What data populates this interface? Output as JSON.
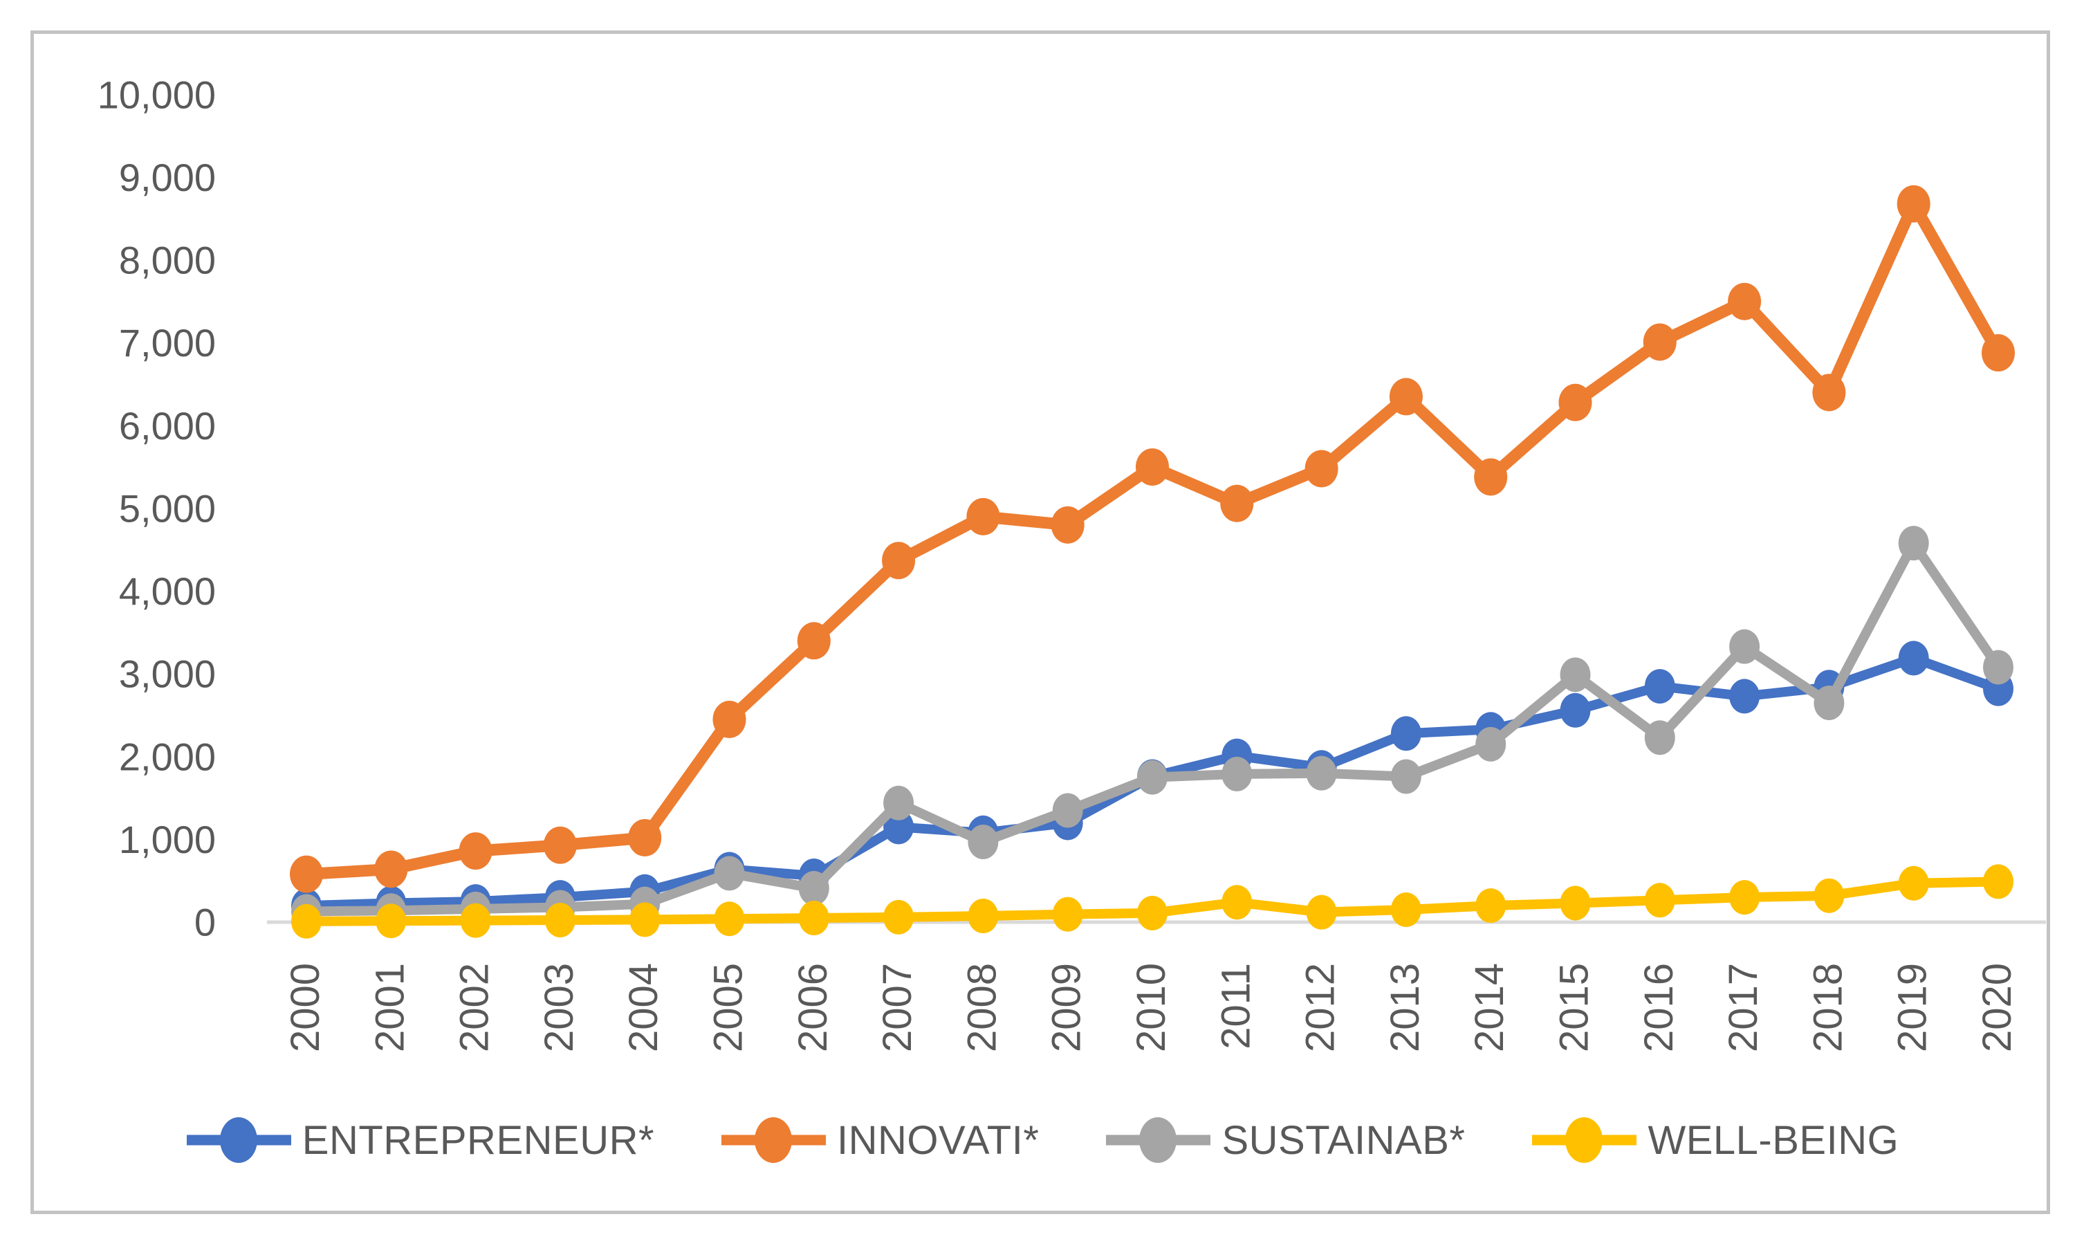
{
  "window": {
    "background_color": "#ffffff",
    "frame_border_color": "#c3c3c3"
  },
  "chart_data": {
    "type": "line",
    "title": "",
    "xlabel": "",
    "ylabel": "",
    "categories": [
      "2000",
      "2001",
      "2002",
      "2003",
      "2004",
      "2005",
      "2006",
      "2007",
      "2008",
      "2009",
      "2010",
      "2011",
      "2012",
      "2013",
      "2014",
      "2015",
      "2016",
      "2017",
      "2018",
      "2019",
      "2020"
    ],
    "series": [
      {
        "name": "ENTREPRENEUR*",
        "color": "#4472C4",
        "values": [
          200,
          230,
          250,
          300,
          370,
          640,
          560,
          1150,
          1080,
          1200,
          1760,
          2010,
          1870,
          2280,
          2330,
          2560,
          2850,
          2730,
          2840,
          3190,
          2820
        ]
      },
      {
        "name": "INNOVATI*",
        "color": "#ED7D31",
        "values": [
          580,
          640,
          860,
          930,
          1020,
          2450,
          3400,
          4370,
          4900,
          4800,
          5500,
          5060,
          5480,
          6350,
          5380,
          6280,
          7010,
          7500,
          6400,
          8680,
          6880
        ]
      },
      {
        "name": "SUSTAINAB*",
        "color": "#A5A5A5",
        "values": [
          130,
          140,
          160,
          180,
          220,
          590,
          410,
          1440,
          970,
          1350,
          1750,
          1790,
          1800,
          1760,
          2150,
          2990,
          2230,
          3330,
          2650,
          4580,
          3080
        ]
      },
      {
        "name": "WELL-BEING",
        "color": "#FFC000",
        "values": [
          10,
          15,
          20,
          25,
          30,
          40,
          50,
          60,
          75,
          95,
          110,
          240,
          120,
          150,
          200,
          230,
          265,
          300,
          320,
          470,
          490
        ]
      }
    ],
    "ylim": [
      0,
      10000
    ],
    "y_ticks": [
      "0",
      "1,000",
      "2,000",
      "3,000",
      "4,000",
      "5,000",
      "6,000",
      "7,000",
      "8,000",
      "9,000",
      "10,000"
    ],
    "y_tick_values": [
      0,
      1000,
      2000,
      3000,
      4000,
      5000,
      6000,
      7000,
      8000,
      9000,
      10000
    ],
    "grid": false,
    "legend_position": "bottom",
    "x_label_rotation": -90,
    "axis_line_color": "#D9D9D9",
    "tick_label_color": "#595959"
  }
}
